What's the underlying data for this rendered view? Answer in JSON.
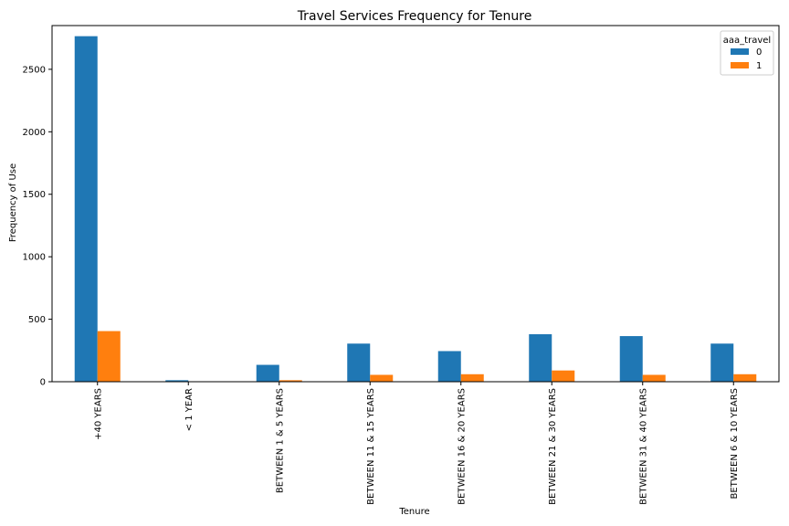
{
  "chart_data": {
    "type": "bar",
    "title": "Travel Services Frequency for Tenure",
    "xlabel": "Tenure",
    "ylabel": "Frequency of Use",
    "categories": [
      "+40 YEARS",
      "< 1 YEAR",
      "BETWEEN 1 & 5 YEARS",
      "BETWEEN 11 & 15 YEARS",
      "BETWEEN 16 & 20 YEARS",
      "BETWEEN 21 & 30 YEARS",
      "BETWEEN 31 & 40 YEARS",
      "BETWEEN 6 & 10 YEARS"
    ],
    "series": [
      {
        "name": "0",
        "color": "#1f77b4",
        "values": [
          2765,
          12,
          135,
          305,
          245,
          380,
          365,
          305
        ]
      },
      {
        "name": "1",
        "color": "#ff7f0e",
        "values": [
          405,
          0,
          12,
          55,
          60,
          90,
          55,
          60
        ]
      }
    ],
    "ylim": [
      0,
      2850
    ],
    "yticks": [
      0,
      500,
      1000,
      1500,
      2000,
      2500
    ],
    "legend": {
      "title": "aaa_travel",
      "position": "top-right"
    },
    "grid": false
  }
}
